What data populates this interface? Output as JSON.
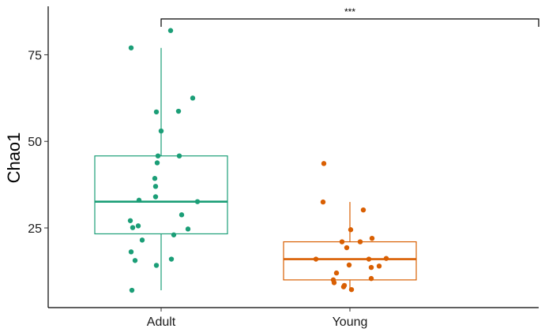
{
  "chart_data": {
    "type": "box",
    "ylabel": "Chao1",
    "xlabel": "",
    "ylim": [
      2,
      89
    ],
    "yticks": [
      25,
      50,
      75
    ],
    "categories": [
      "Adult",
      "Young"
    ],
    "series": [
      {
        "name": "Adult",
        "color": "#1b9e77",
        "box": {
          "whisker_low": 7,
          "q1": 23.3,
          "median": 32.6,
          "q3": 45.8,
          "whisker_high": 77
        },
        "points": [
          82,
          77,
          62.5,
          58.5,
          58.7,
          53,
          45.8,
          45.8,
          43.8,
          39.3,
          37,
          34,
          33,
          32.6,
          28.8,
          27.1,
          25.6,
          25.1,
          24.7,
          23,
          21.5,
          18.1,
          16,
          15.6,
          14.2,
          7
        ]
      },
      {
        "name": "Young",
        "color": "#d95f02",
        "box": {
          "whisker_low": 7,
          "q1": 10,
          "median": 16,
          "q3": 21,
          "whisker_high": 32.5
        },
        "points": [
          43.6,
          32.5,
          30.2,
          24.5,
          22,
          21,
          21,
          19.3,
          16.2,
          16,
          16,
          14.3,
          14,
          13.6,
          12,
          10.4,
          10,
          9.2,
          8.4,
          8,
          7.2
        ]
      }
    ],
    "significance": {
      "label": "***",
      "from": "Adult",
      "to": "end"
    }
  }
}
